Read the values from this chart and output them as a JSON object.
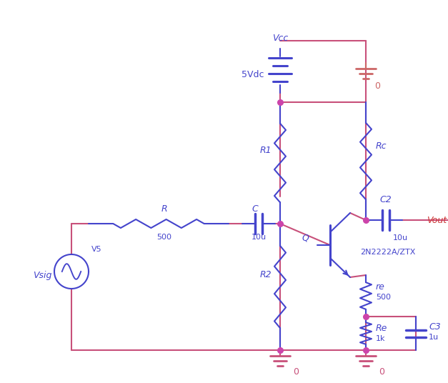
{
  "bg_color": "#ffffff",
  "wire_color": "#c8507a",
  "component_color": "#4444cc",
  "vout_color": "#cc3333",
  "gnd_color_red": "#cc6666",
  "fig_width": 6.27,
  "fig_height": 5.36,
  "components": {
    "Vcc_label": "Vcc",
    "V5dc_label": "5Vdc",
    "R1_label": "R1",
    "Rc_label": "Rc",
    "C2_label": "C2",
    "C2_value": "10u",
    "Vout_label": "Vout",
    "R_label": "R",
    "R_value": "500",
    "C_label": "C",
    "C_value": "10u",
    "Q_label": "Q",
    "transistor_label": "2N2222A/ZTX",
    "R2_label": "R2",
    "re_label": "re",
    "re_value": "500",
    "Re_label": "Re",
    "Re_value": "1k",
    "C3_label": "C3",
    "C3_value": "1u",
    "Vsig_label": "Vsig",
    "V5_label": "V5",
    "gnd0_label": "0"
  }
}
